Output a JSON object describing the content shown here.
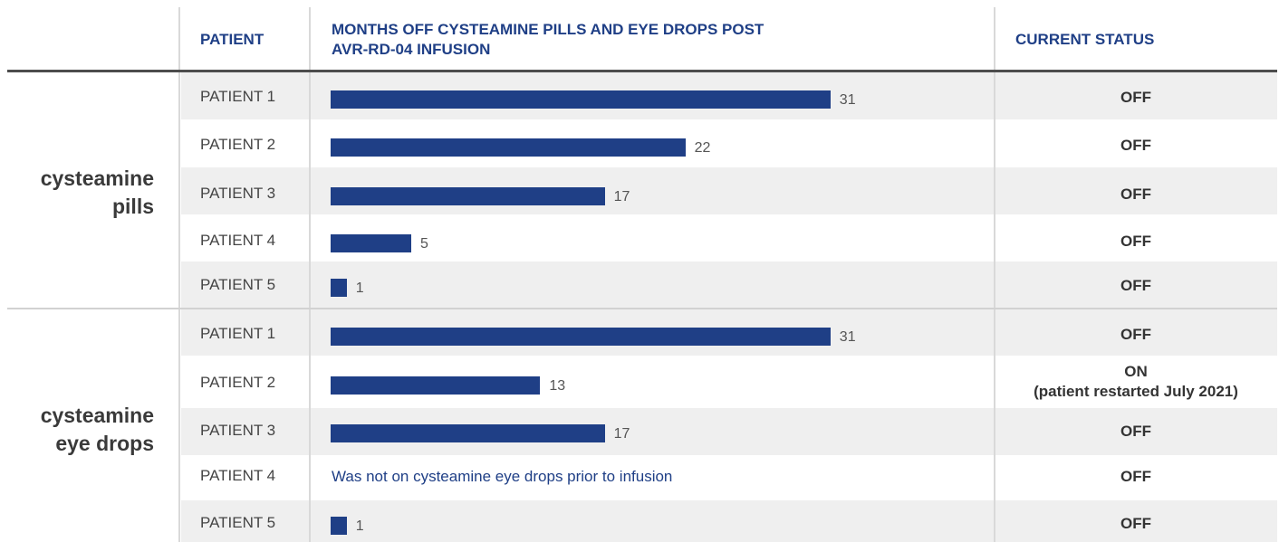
{
  "header": {
    "patient": "PATIENT",
    "months_line1": "MONTHS OFF CYSTEAMINE PILLS AND EYE DROPS POST",
    "months_line2": "AVR-RD-04 INFUSION",
    "status": "CURRENT STATUS"
  },
  "colors": {
    "bar": "#1f3f86",
    "header_text": "#1f3f86",
    "stripe": "#efefef",
    "note_text": "#1f3f86"
  },
  "groups": [
    {
      "label_line1": "cysteamine",
      "label_line2": "pills",
      "rows": [
        {
          "patient": "PATIENT 1",
          "months": 31,
          "value_label": "31",
          "status": "OFF"
        },
        {
          "patient": "PATIENT 2",
          "months": 22,
          "value_label": "22",
          "status": "OFF"
        },
        {
          "patient": "PATIENT 3",
          "months": 17,
          "value_label": "17",
          "status": "OFF"
        },
        {
          "patient": "PATIENT 4",
          "months": 5,
          "value_label": "5",
          "status": "OFF"
        },
        {
          "patient": "PATIENT 5",
          "months": 1,
          "value_label": "1",
          "status": "OFF"
        }
      ]
    },
    {
      "label_line1": "cysteamine",
      "label_line2": "eye drops",
      "rows": [
        {
          "patient": "PATIENT 1",
          "months": 31,
          "value_label": "31",
          "status": "OFF"
        },
        {
          "patient": "PATIENT 2",
          "months": 13,
          "value_label": "13",
          "status": "ON",
          "status_note": "(patient restarted July 2021)"
        },
        {
          "patient": "PATIENT 3",
          "months": 17,
          "value_label": "17",
          "status": "OFF"
        },
        {
          "patient": "PATIENT 4",
          "months": null,
          "note": "Was not on cysteamine eye drops prior to infusion",
          "status": "OFF"
        },
        {
          "patient": "PATIENT 5",
          "months": 1,
          "value_label": "1",
          "status": "OFF"
        }
      ]
    }
  ],
  "chart_data": {
    "type": "bar",
    "orientation": "horizontal",
    "xlabel": "MONTHS OFF CYSTEAMINE PILLS AND EYE DROPS POST AVR-RD-04 INFUSION",
    "grid": false,
    "series": [
      {
        "name": "cysteamine pills",
        "categories": [
          "PATIENT 1",
          "PATIENT 2",
          "PATIENT 3",
          "PATIENT 4",
          "PATIENT 5"
        ],
        "values": [
          31,
          22,
          17,
          5,
          1
        ]
      },
      {
        "name": "cysteamine eye drops",
        "categories": [
          "PATIENT 1",
          "PATIENT 2",
          "PATIENT 3",
          "PATIENT 4",
          "PATIENT 5"
        ],
        "values": [
          31,
          13,
          17,
          null,
          1
        ]
      }
    ]
  }
}
